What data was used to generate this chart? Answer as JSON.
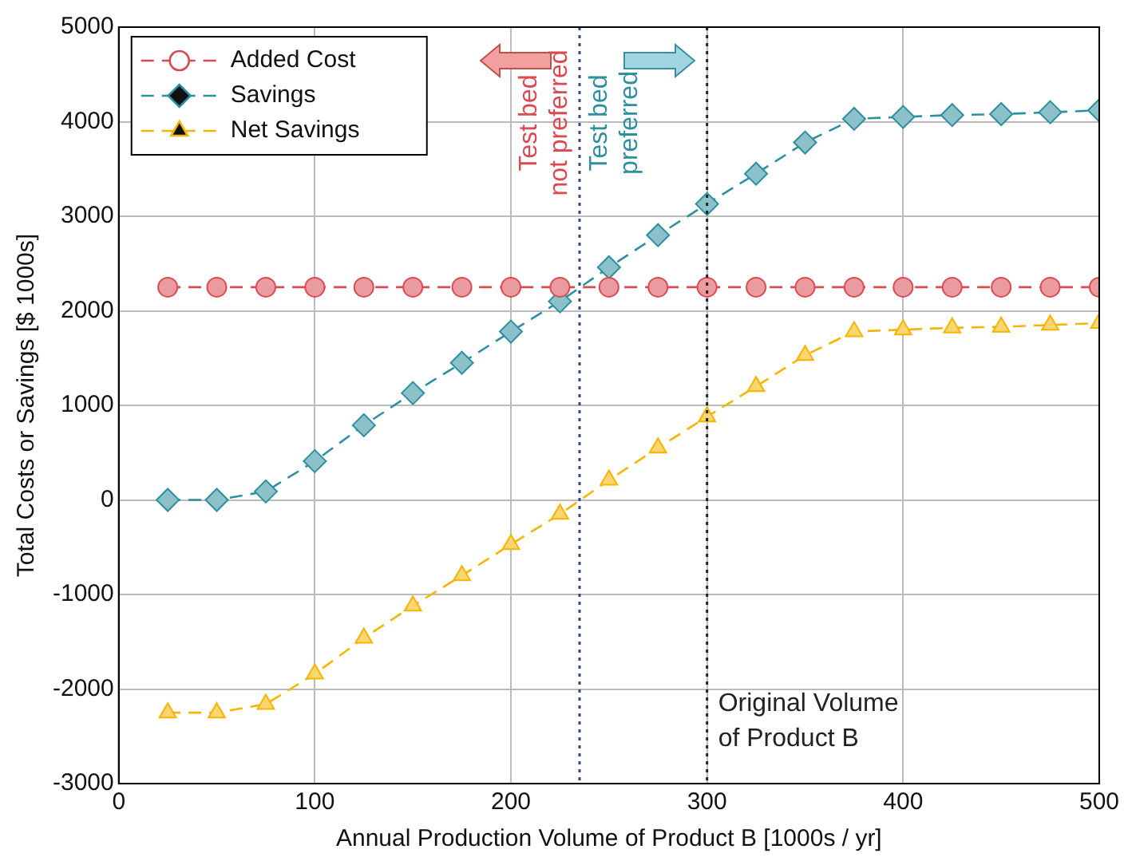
{
  "chart_data": {
    "type": "line",
    "xlabel": "Annual Production Volume of Product B [1000s / yr]",
    "ylabel": "Total Costs or Savings [$ 1000s]",
    "x": [
      25,
      50,
      75,
      100,
      125,
      150,
      175,
      200,
      225,
      250,
      275,
      300,
      325,
      350,
      375,
      400,
      425,
      450,
      475,
      500
    ],
    "series": [
      {
        "name": "Added Cost",
        "color": "#d94a52",
        "marker": "circle",
        "values": [
          2250,
          2250,
          2250,
          2250,
          2250,
          2250,
          2250,
          2250,
          2250,
          2250,
          2250,
          2250,
          2250,
          2250,
          2250,
          2250,
          2250,
          2250,
          2250,
          2250
        ]
      },
      {
        "name": "Savings",
        "color": "#2e8f9e",
        "marker": "diamond",
        "values": [
          0,
          0,
          90,
          410,
          790,
          1130,
          1450,
          1780,
          2100,
          2460,
          2800,
          3130,
          3450,
          3780,
          4030,
          4050,
          4070,
          4080,
          4100,
          4120
        ]
      },
      {
        "name": "Net Savings",
        "color": "#f5b400",
        "marker": "triangle",
        "values": [
          -2250,
          -2250,
          -2160,
          -1840,
          -1460,
          -1120,
          -800,
          -470,
          -150,
          210,
          550,
          880,
          1200,
          1530,
          1780,
          1800,
          1820,
          1830,
          1850,
          1870
        ]
      }
    ],
    "xlim": [
      0,
      500
    ],
    "xticks": [
      0,
      100,
      200,
      300,
      400,
      500
    ],
    "ylim": [
      -3000,
      5000
    ],
    "yticks": [
      -3000,
      -2000,
      -1000,
      0,
      1000,
      2000,
      3000,
      4000,
      5000
    ],
    "ref_lines": [
      {
        "axis": "x",
        "value": 235,
        "label": null,
        "color": "#2e4a8a",
        "line_style": "dotted"
      },
      {
        "axis": "x",
        "value": 300,
        "label": "Original Volume\nof Product B",
        "color": "#222222",
        "line_style": "dotted"
      }
    ],
    "annotations": [
      "Test bed\nnot preferred",
      "Test bed\npreferred"
    ],
    "grid": true,
    "legend": "top left",
    "line_style": "dashed"
  }
}
